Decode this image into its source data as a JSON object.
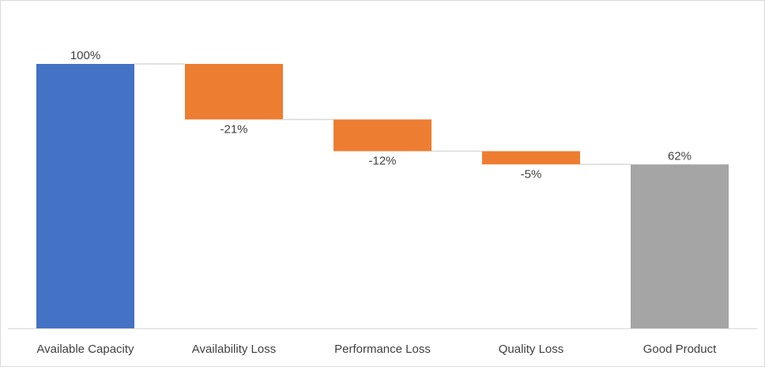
{
  "chart_data": {
    "type": "bar",
    "subtype": "waterfall",
    "categories": [
      "Available Capacity",
      "Availability Loss",
      "Performance Loss",
      "Quality Loss",
      "Good Product"
    ],
    "values": [
      100,
      -21,
      -12,
      -5,
      62
    ],
    "kinds": [
      "total",
      "decrease",
      "decrease",
      "decrease",
      "total"
    ],
    "data_labels": [
      "100%",
      "-21%",
      "-12%",
      "-5%",
      "62%"
    ],
    "ylim": [
      0,
      120
    ],
    "grid": false,
    "legend": "none",
    "colors": {
      "total_start": "#4472C4",
      "decrease": "#ED7D31",
      "total_end": "#A5A5A5",
      "connector": "#D9D9D9",
      "axis": "#D9D9D9",
      "text": "#404040"
    }
  }
}
